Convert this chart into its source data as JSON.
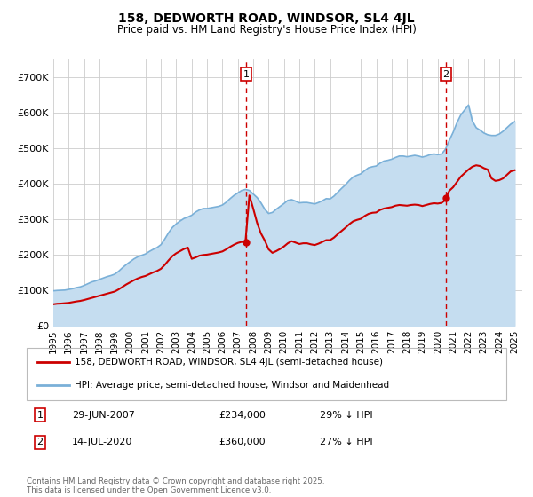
{
  "title": "158, DEDWORTH ROAD, WINDSOR, SL4 4JL",
  "subtitle": "Price paid vs. HM Land Registry's House Price Index (HPI)",
  "ylim": [
    0,
    750000
  ],
  "yticks": [
    0,
    100000,
    200000,
    300000,
    400000,
    500000,
    600000,
    700000
  ],
  "ytick_labels": [
    "£0",
    "£100K",
    "£200K",
    "£300K",
    "£400K",
    "£500K",
    "£600K",
    "£700K"
  ],
  "background_color": "#ffffff",
  "grid_color": "#cccccc",
  "hpi_color": "#7ab0d8",
  "hpi_fill_color": "#c5ddf0",
  "price_color": "#cc0000",
  "marker1_date": 2007.54,
  "marker2_date": 2020.54,
  "marker1_price": 234000,
  "marker2_price": 360000,
  "vline_color": "#cc0000",
  "legend_price_label": "158, DEDWORTH ROAD, WINDSOR, SL4 4JL (semi-detached house)",
  "legend_hpi_label": "HPI: Average price, semi-detached house, Windsor and Maidenhead",
  "table_row1": [
    "1",
    "29-JUN-2007",
    "£234,000",
    "29% ↓ HPI"
  ],
  "table_row2": [
    "2",
    "14-JUL-2020",
    "£360,000",
    "27% ↓ HPI"
  ],
  "footer": "Contains HM Land Registry data © Crown copyright and database right 2025.\nThis data is licensed under the Open Government Licence v3.0.",
  "hpi_data": [
    [
      1995.0,
      98000
    ],
    [
      1995.25,
      99000
    ],
    [
      1995.5,
      99500
    ],
    [
      1995.75,
      100000
    ],
    [
      1996.0,
      102000
    ],
    [
      1996.25,
      104000
    ],
    [
      1996.5,
      107000
    ],
    [
      1996.75,
      109000
    ],
    [
      1997.0,
      113000
    ],
    [
      1997.25,
      118000
    ],
    [
      1997.5,
      123000
    ],
    [
      1997.75,
      126000
    ],
    [
      1998.0,
      130000
    ],
    [
      1998.25,
      134000
    ],
    [
      1998.5,
      138000
    ],
    [
      1998.75,
      141000
    ],
    [
      1999.0,
      145000
    ],
    [
      1999.25,
      153000
    ],
    [
      1999.5,
      163000
    ],
    [
      1999.75,
      172000
    ],
    [
      2000.0,
      180000
    ],
    [
      2000.25,
      188000
    ],
    [
      2000.5,
      194000
    ],
    [
      2000.75,
      198000
    ],
    [
      2001.0,
      202000
    ],
    [
      2001.25,
      209000
    ],
    [
      2001.5,
      215000
    ],
    [
      2001.75,
      220000
    ],
    [
      2002.0,
      228000
    ],
    [
      2002.25,
      244000
    ],
    [
      2002.5,
      262000
    ],
    [
      2002.75,
      277000
    ],
    [
      2003.0,
      287000
    ],
    [
      2003.25,
      295000
    ],
    [
      2003.5,
      302000
    ],
    [
      2003.75,
      306000
    ],
    [
      2004.0,
      311000
    ],
    [
      2004.25,
      320000
    ],
    [
      2004.5,
      326000
    ],
    [
      2004.75,
      330000
    ],
    [
      2005.0,
      330000
    ],
    [
      2005.25,
      332000
    ],
    [
      2005.5,
      334000
    ],
    [
      2005.75,
      336000
    ],
    [
      2006.0,
      340000
    ],
    [
      2006.25,
      348000
    ],
    [
      2006.5,
      358000
    ],
    [
      2006.75,
      367000
    ],
    [
      2007.0,
      374000
    ],
    [
      2007.25,
      381000
    ],
    [
      2007.5,
      384000
    ],
    [
      2007.75,
      381000
    ],
    [
      2008.0,
      371000
    ],
    [
      2008.25,
      361000
    ],
    [
      2008.5,
      346000
    ],
    [
      2008.75,
      328000
    ],
    [
      2009.0,
      316000
    ],
    [
      2009.25,
      319000
    ],
    [
      2009.5,
      328000
    ],
    [
      2009.75,
      336000
    ],
    [
      2010.0,
      344000
    ],
    [
      2010.25,
      353000
    ],
    [
      2010.5,
      355000
    ],
    [
      2010.75,
      351000
    ],
    [
      2011.0,
      346000
    ],
    [
      2011.25,
      347000
    ],
    [
      2011.5,
      347000
    ],
    [
      2011.75,
      345000
    ],
    [
      2012.0,
      343000
    ],
    [
      2012.25,
      347000
    ],
    [
      2012.5,
      352000
    ],
    [
      2012.75,
      358000
    ],
    [
      2013.0,
      357000
    ],
    [
      2013.25,
      365000
    ],
    [
      2013.5,
      376000
    ],
    [
      2013.75,
      387000
    ],
    [
      2014.0,
      397000
    ],
    [
      2014.25,
      409000
    ],
    [
      2014.5,
      419000
    ],
    [
      2014.75,
      424000
    ],
    [
      2015.0,
      428000
    ],
    [
      2015.25,
      437000
    ],
    [
      2015.5,
      445000
    ],
    [
      2015.75,
      448000
    ],
    [
      2016.0,
      450000
    ],
    [
      2016.25,
      458000
    ],
    [
      2016.5,
      464000
    ],
    [
      2016.75,
      466000
    ],
    [
      2017.0,
      469000
    ],
    [
      2017.25,
      474000
    ],
    [
      2017.5,
      478000
    ],
    [
      2017.75,
      478000
    ],
    [
      2018.0,
      476000
    ],
    [
      2018.25,
      478000
    ],
    [
      2018.5,
      480000
    ],
    [
      2018.75,
      478000
    ],
    [
      2019.0,
      475000
    ],
    [
      2019.25,
      478000
    ],
    [
      2019.5,
      482000
    ],
    [
      2019.75,
      484000
    ],
    [
      2020.0,
      482000
    ],
    [
      2020.25,
      484000
    ],
    [
      2020.5,
      497000
    ],
    [
      2020.75,
      522000
    ],
    [
      2021.0,
      545000
    ],
    [
      2021.25,
      572000
    ],
    [
      2021.5,
      594000
    ],
    [
      2021.75,
      608000
    ],
    [
      2022.0,
      622000
    ],
    [
      2022.25,
      577000
    ],
    [
      2022.5,
      558000
    ],
    [
      2022.75,
      551000
    ],
    [
      2023.0,
      543000
    ],
    [
      2023.25,
      538000
    ],
    [
      2023.5,
      536000
    ],
    [
      2023.75,
      536000
    ],
    [
      2024.0,
      540000
    ],
    [
      2024.25,
      548000
    ],
    [
      2024.5,
      558000
    ],
    [
      2024.75,
      568000
    ],
    [
      2025.0,
      575000
    ]
  ],
  "price_data": [
    [
      1995.0,
      60000
    ],
    [
      1995.25,
      61500
    ],
    [
      1995.5,
      62000
    ],
    [
      1995.75,
      63000
    ],
    [
      1996.0,
      64000
    ],
    [
      1996.25,
      66000
    ],
    [
      1996.5,
      68000
    ],
    [
      1996.75,
      69500
    ],
    [
      1997.0,
      72000
    ],
    [
      1997.25,
      75000
    ],
    [
      1997.5,
      78000
    ],
    [
      1997.75,
      81000
    ],
    [
      1998.0,
      84000
    ],
    [
      1998.25,
      87000
    ],
    [
      1998.5,
      90000
    ],
    [
      1998.75,
      93000
    ],
    [
      1999.0,
      96000
    ],
    [
      1999.25,
      102000
    ],
    [
      1999.5,
      109000
    ],
    [
      1999.75,
      116000
    ],
    [
      2000.0,
      122000
    ],
    [
      2000.25,
      128000
    ],
    [
      2000.5,
      133000
    ],
    [
      2000.75,
      137000
    ],
    [
      2001.0,
      140000
    ],
    [
      2001.25,
      145000
    ],
    [
      2001.5,
      150000
    ],
    [
      2001.75,
      154000
    ],
    [
      2002.0,
      160000
    ],
    [
      2002.25,
      171000
    ],
    [
      2002.5,
      184000
    ],
    [
      2002.75,
      196000
    ],
    [
      2003.0,
      204000
    ],
    [
      2003.25,
      210000
    ],
    [
      2003.5,
      216000
    ],
    [
      2003.75,
      220000
    ],
    [
      2004.0,
      188000
    ],
    [
      2004.25,
      192000
    ],
    [
      2004.5,
      197000
    ],
    [
      2004.75,
      199000
    ],
    [
      2005.0,
      200000
    ],
    [
      2005.25,
      202000
    ],
    [
      2005.5,
      204000
    ],
    [
      2005.75,
      206000
    ],
    [
      2006.0,
      209000
    ],
    [
      2006.25,
      215000
    ],
    [
      2006.5,
      222000
    ],
    [
      2006.75,
      228000
    ],
    [
      2007.0,
      233000
    ],
    [
      2007.25,
      236000
    ],
    [
      2007.49,
      234000
    ],
    [
      2007.75,
      367000
    ],
    [
      2008.0,
      330000
    ],
    [
      2008.25,
      290000
    ],
    [
      2008.5,
      260000
    ],
    [
      2008.75,
      240000
    ],
    [
      2009.0,
      215000
    ],
    [
      2009.25,
      205000
    ],
    [
      2009.5,
      210000
    ],
    [
      2009.75,
      216000
    ],
    [
      2010.0,
      223000
    ],
    [
      2010.25,
      232000
    ],
    [
      2010.5,
      238000
    ],
    [
      2010.75,
      234000
    ],
    [
      2011.0,
      230000
    ],
    [
      2011.25,
      232000
    ],
    [
      2011.5,
      232000
    ],
    [
      2011.75,
      229000
    ],
    [
      2012.0,
      227000
    ],
    [
      2012.25,
      231000
    ],
    [
      2012.5,
      236000
    ],
    [
      2012.75,
      241000
    ],
    [
      2013.0,
      241000
    ],
    [
      2013.25,
      248000
    ],
    [
      2013.5,
      258000
    ],
    [
      2013.75,
      267000
    ],
    [
      2014.0,
      276000
    ],
    [
      2014.25,
      286000
    ],
    [
      2014.5,
      294000
    ],
    [
      2014.75,
      298000
    ],
    [
      2015.0,
      301000
    ],
    [
      2015.25,
      309000
    ],
    [
      2015.5,
      315000
    ],
    [
      2015.75,
      318000
    ],
    [
      2016.0,
      319000
    ],
    [
      2016.25,
      326000
    ],
    [
      2016.5,
      330000
    ],
    [
      2016.75,
      332000
    ],
    [
      2017.0,
      334000
    ],
    [
      2017.25,
      338000
    ],
    [
      2017.5,
      340000
    ],
    [
      2017.75,
      339000
    ],
    [
      2018.0,
      338000
    ],
    [
      2018.25,
      340000
    ],
    [
      2018.5,
      341000
    ],
    [
      2018.75,
      340000
    ],
    [
      2019.0,
      337000
    ],
    [
      2019.25,
      340000
    ],
    [
      2019.5,
      343000
    ],
    [
      2019.75,
      345000
    ],
    [
      2020.0,
      344000
    ],
    [
      2020.25,
      346000
    ],
    [
      2020.5,
      354000
    ],
    [
      2020.54,
      360000
    ],
    [
      2020.75,
      380000
    ],
    [
      2021.0,
      390000
    ],
    [
      2021.25,
      405000
    ],
    [
      2021.5,
      420000
    ],
    [
      2021.75,
      430000
    ],
    [
      2022.0,
      440000
    ],
    [
      2022.25,
      448000
    ],
    [
      2022.5,
      452000
    ],
    [
      2022.75,
      450000
    ],
    [
      2023.0,
      444000
    ],
    [
      2023.25,
      440000
    ],
    [
      2023.5,
      415000
    ],
    [
      2023.75,
      408000
    ],
    [
      2024.0,
      410000
    ],
    [
      2024.25,
      415000
    ],
    [
      2024.5,
      425000
    ],
    [
      2024.75,
      435000
    ],
    [
      2025.0,
      438000
    ]
  ]
}
